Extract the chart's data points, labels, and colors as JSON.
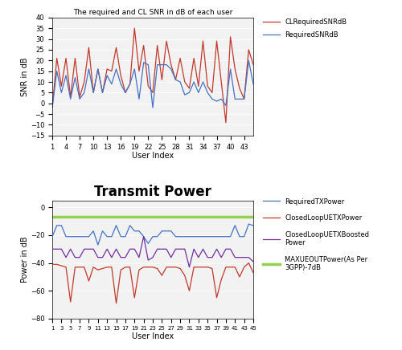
{
  "title1": "The required and CL SNR in dB of each user",
  "title2": "Transmit Power",
  "xlabel": "User Index",
  "ylabel1": "SNR in dB",
  "ylabel2": "Power in dB",
  "snr_xticks": [
    1,
    4,
    7,
    10,
    13,
    16,
    19,
    22,
    25,
    28,
    31,
    34,
    37,
    40,
    43
  ],
  "snr_ylim": [
    -15,
    40
  ],
  "snr_yticks": [
    -15,
    -10,
    -5,
    0,
    5,
    10,
    15,
    20,
    25,
    30,
    35,
    40
  ],
  "pwr_ylim": [
    -80,
    5
  ],
  "pwr_yticks": [
    -80,
    -60,
    -40,
    -20,
    0
  ],
  "cl_snr_color": "#c0392b",
  "req_snr_color": "#4472c4",
  "req_tx_color": "#4472c4",
  "cl_tx_color": "#c0392b",
  "cl_boost_color": "#7030a0",
  "max_ue_color": "#92d050",
  "CLRequiredSNRdB": [
    -2,
    21,
    8,
    21,
    3,
    21,
    3,
    10,
    26,
    5,
    16,
    5,
    16,
    15,
    26,
    13,
    5,
    9,
    35,
    15,
    27,
    8,
    5,
    27,
    11,
    29,
    18,
    11,
    21,
    10,
    7,
    21,
    8,
    29,
    8,
    5,
    29,
    10,
    -9,
    31,
    16,
    7,
    2,
    25,
    18
  ],
  "RequiredSNRdB": [
    -2,
    15,
    5,
    13,
    2,
    12,
    2,
    5,
    16,
    5,
    16,
    5,
    13,
    9,
    16,
    9,
    5,
    9,
    16,
    2,
    19,
    18,
    -2,
    18,
    18,
    18,
    16,
    11,
    10,
    4,
    5,
    10,
    5,
    10,
    5,
    2,
    1,
    2,
    -1,
    16,
    2,
    2,
    2,
    20,
    9
  ],
  "RequiredTXPower": [
    -21,
    -13,
    -13,
    -21,
    -21,
    -21,
    -21,
    -21,
    -21,
    -17,
    -27,
    -17,
    -21,
    -21,
    -13,
    -21,
    -21,
    -13,
    -17,
    -17,
    -21,
    -26,
    -21,
    -21,
    -17,
    -17,
    -17,
    -21,
    -21,
    -21,
    -21,
    -21,
    -21,
    -21,
    -21,
    -21,
    -21,
    -21,
    -21,
    -21,
    -13,
    -21,
    -21,
    -12,
    -13
  ],
  "ClosedLoopUETXPower": [
    -41,
    -41,
    -42,
    -43,
    -68,
    -43,
    -43,
    -43,
    -53,
    -43,
    -45,
    -44,
    -43,
    -43,
    -69,
    -45,
    -43,
    -43,
    -65,
    -45,
    -43,
    -43,
    -43,
    -44,
    -49,
    -43,
    -43,
    -43,
    -44,
    -49,
    -60,
    -43,
    -43,
    -43,
    -43,
    -44,
    -65,
    -52,
    -43,
    -43,
    -43,
    -50,
    -43,
    -40,
    -47
  ],
  "ClosedLoopUETXBoostedPower": [
    -30,
    -30,
    -30,
    -36,
    -30,
    -36,
    -36,
    -30,
    -30,
    -30,
    -36,
    -36,
    -30,
    -36,
    -30,
    -36,
    -36,
    -30,
    -30,
    -36,
    -21,
    -38,
    -36,
    -30,
    -30,
    -30,
    -36,
    -30,
    -30,
    -30,
    -43,
    -30,
    -36,
    -30,
    -36,
    -36,
    -30,
    -36,
    -30,
    -30,
    -36,
    -36,
    -36,
    -36,
    -39
  ],
  "MAXUEOUTPower": -7,
  "pwr_xtick_labels": [
    "1",
    "3",
    "5",
    "7",
    "9",
    "11",
    "13",
    "15",
    "17",
    "19",
    "21",
    "23",
    "25",
    "27",
    "29",
    "31",
    "33",
    "35",
    "37",
    "39",
    "41",
    "43",
    "45"
  ],
  "pwr_xtick_pos": [
    1,
    3,
    5,
    7,
    9,
    11,
    13,
    15,
    17,
    19,
    21,
    23,
    25,
    27,
    29,
    31,
    33,
    35,
    37,
    39,
    41,
    43,
    45
  ],
  "bg_color": "#f2f2f2"
}
